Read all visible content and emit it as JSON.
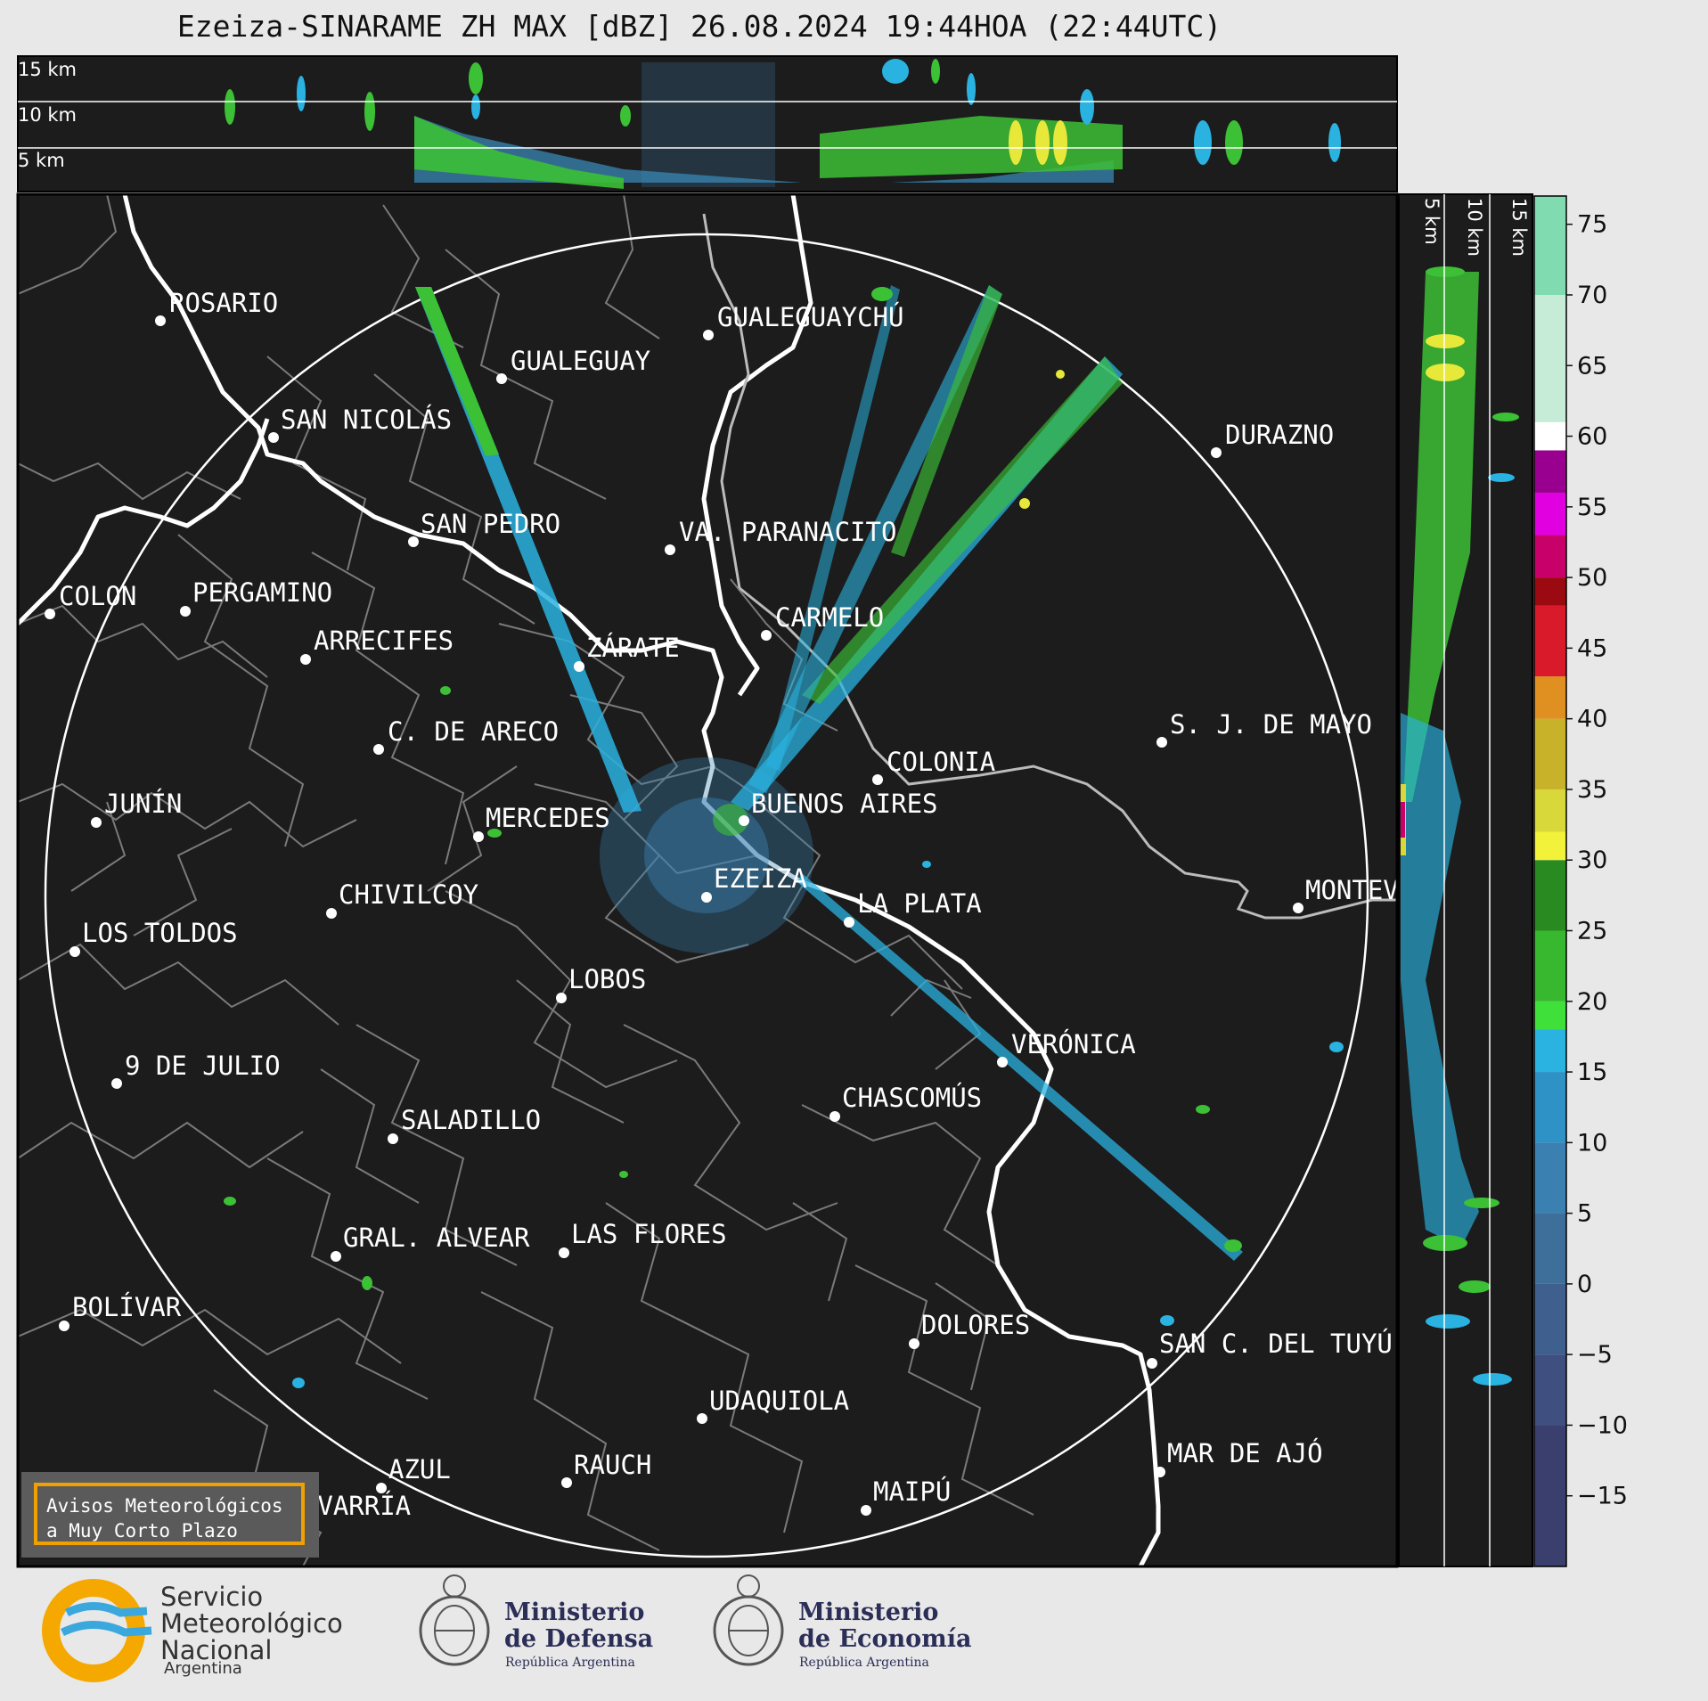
{
  "title": "Ezeiza-SINARAME ZH MAX [dBZ] 26.08.2024 19:44HOA (22:44UTC)",
  "top_panel": {
    "altitude_labels": [
      "15 km",
      "10 km",
      "5 km"
    ]
  },
  "side_panel": {
    "altitude_labels": [
      "5 km",
      "10 km",
      "15 km"
    ]
  },
  "colorbar": {
    "ticks": [
      "75",
      "70",
      "65",
      "60",
      "55",
      "50",
      "45",
      "40",
      "35",
      "30",
      "25",
      "20",
      "15",
      "10",
      "5",
      "0",
      "−5",
      "−10",
      "−15"
    ],
    "bands": [
      {
        "from": -20,
        "to": -10,
        "color": "#3a3f6e"
      },
      {
        "from": -10,
        "to": -5,
        "color": "#3e4f80"
      },
      {
        "from": -5,
        "to": 0,
        "color": "#3f5f8e"
      },
      {
        "from": 0,
        "to": 5,
        "color": "#3e6e9a"
      },
      {
        "from": 5,
        "to": 10,
        "color": "#3a80b0"
      },
      {
        "from": 10,
        "to": 15,
        "color": "#2f92c6"
      },
      {
        "from": 15,
        "to": 18,
        "color": "#2ab2e0"
      },
      {
        "from": 18,
        "to": 20,
        "color": "#3fe03a"
      },
      {
        "from": 20,
        "to": 25,
        "color": "#37b82f"
      },
      {
        "from": 25,
        "to": 30,
        "color": "#2a8a22"
      },
      {
        "from": 30,
        "to": 32,
        "color": "#f2f23a"
      },
      {
        "from": 32,
        "to": 35,
        "color": "#d8d83a"
      },
      {
        "from": 35,
        "to": 40,
        "color": "#c8b22a"
      },
      {
        "from": 40,
        "to": 43,
        "color": "#e09020"
      },
      {
        "from": 43,
        "to": 48,
        "color": "#d81a2a"
      },
      {
        "from": 48,
        "to": 50,
        "color": "#9a0a10"
      },
      {
        "from": 50,
        "to": 53,
        "color": "#c8006a"
      },
      {
        "from": 53,
        "to": 56,
        "color": "#e000e0"
      },
      {
        "from": 56,
        "to": 59,
        "color": "#9a0090"
      },
      {
        "from": 59,
        "to": 61,
        "color": "#ffffff"
      },
      {
        "from": 61,
        "to": 70,
        "color": "#c6ecd8"
      },
      {
        "from": 70,
        "to": 77,
        "color": "#80dcb0"
      }
    ]
  },
  "cities": [
    {
      "name": "ROSARIO"
    },
    {
      "name": "GUALEGUAYCHÚ"
    },
    {
      "name": "GUALEGUAY"
    },
    {
      "name": "SAN NICOLÁS"
    },
    {
      "name": "DURAZNO"
    },
    {
      "name": "SAN PEDRO"
    },
    {
      "name": "VA. PARANACITO"
    },
    {
      "name": "COLON"
    },
    {
      "name": "PERGAMINO"
    },
    {
      "name": "CARMELO"
    },
    {
      "name": "ARRECIFES"
    },
    {
      "name": "ZÁRATE"
    },
    {
      "name": "S. J. DE MAYO"
    },
    {
      "name": "C. DE ARECO"
    },
    {
      "name": "COLONIA"
    },
    {
      "name": "JUNÍN"
    },
    {
      "name": "BUENOS AIRES"
    },
    {
      "name": "MERCEDES"
    },
    {
      "name": "EZEIZA"
    },
    {
      "name": "MONTEVIDEO"
    },
    {
      "name": "CHIVILCOY"
    },
    {
      "name": "LA PLATA"
    },
    {
      "name": "LOS TOLDOS"
    },
    {
      "name": "LOBOS"
    },
    {
      "name": "VERÓNICA"
    },
    {
      "name": "9 DE JULIO"
    },
    {
      "name": "CHASCOMÚS"
    },
    {
      "name": "SALADILLO"
    },
    {
      "name": "GRAL. ALVEAR"
    },
    {
      "name": "LAS FLORES"
    },
    {
      "name": "BOLÍVAR"
    },
    {
      "name": "DOLORES"
    },
    {
      "name": "SAN C. DEL TUYÚ"
    },
    {
      "name": "UDAQUIOLA"
    },
    {
      "name": "MAR DE AJÓ"
    },
    {
      "name": "AZUL"
    },
    {
      "name": "RAUCH"
    },
    {
      "name": "OLAVARRÍA"
    },
    {
      "name": "MAIPÚ"
    }
  ],
  "warning_box": {
    "line1": "Avisos Meteorológicos",
    "line2": "a Muy Corto Plazo"
  },
  "logos": {
    "smn": {
      "line1": "Servicio",
      "line2": "Meteorológico",
      "line3": "Nacional",
      "country": "Argentina"
    },
    "defensa": {
      "line1": "Ministerio",
      "line2": "de Defensa",
      "sub": "República Argentina"
    },
    "economia": {
      "line1": "Ministerio",
      "line2": "de Economía",
      "sub": "República Argentina"
    }
  }
}
